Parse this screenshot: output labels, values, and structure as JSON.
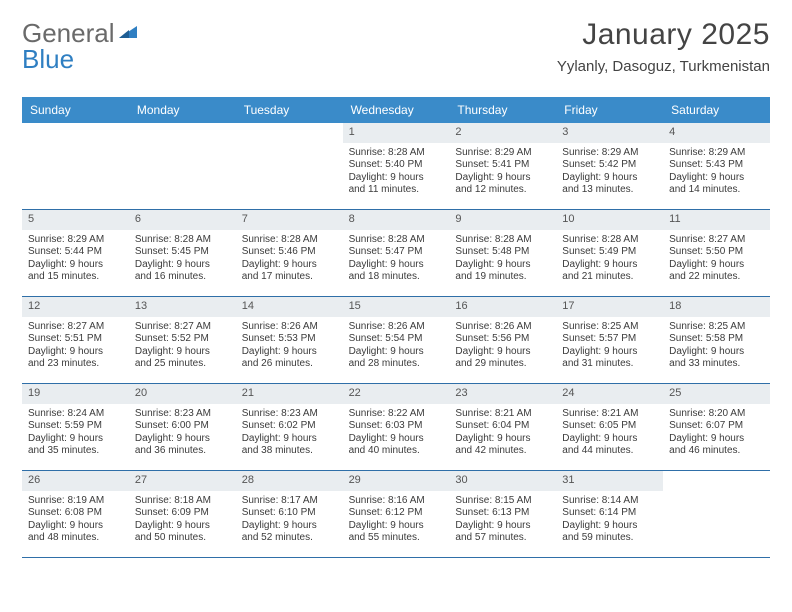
{
  "brand": {
    "part1": "General",
    "part2": "Blue"
  },
  "colors": {
    "header_bg": "#3a8bc9",
    "header_text": "#ffffff",
    "rule": "#2f6fa8",
    "daynum_bg": "#e9edf0",
    "text": "#3b3b3b",
    "brand_gray": "#6a6a6a",
    "brand_blue": "#2f7fc2",
    "page_bg": "#ffffff"
  },
  "title": "January 2025",
  "location": "Yylanly, Dasoguz, Turkmenistan",
  "dows": [
    "Sunday",
    "Monday",
    "Tuesday",
    "Wednesday",
    "Thursday",
    "Friday",
    "Saturday"
  ],
  "weeks": [
    [
      {
        "day": "",
        "sunrise": "",
        "sunset": "",
        "dayl1": "",
        "dayl2": ""
      },
      {
        "day": "",
        "sunrise": "",
        "sunset": "",
        "dayl1": "",
        "dayl2": ""
      },
      {
        "day": "",
        "sunrise": "",
        "sunset": "",
        "dayl1": "",
        "dayl2": ""
      },
      {
        "day": "1",
        "sunrise": "Sunrise: 8:28 AM",
        "sunset": "Sunset: 5:40 PM",
        "dayl1": "Daylight: 9 hours",
        "dayl2": "and 11 minutes."
      },
      {
        "day": "2",
        "sunrise": "Sunrise: 8:29 AM",
        "sunset": "Sunset: 5:41 PM",
        "dayl1": "Daylight: 9 hours",
        "dayl2": "and 12 minutes."
      },
      {
        "day": "3",
        "sunrise": "Sunrise: 8:29 AM",
        "sunset": "Sunset: 5:42 PM",
        "dayl1": "Daylight: 9 hours",
        "dayl2": "and 13 minutes."
      },
      {
        "day": "4",
        "sunrise": "Sunrise: 8:29 AM",
        "sunset": "Sunset: 5:43 PM",
        "dayl1": "Daylight: 9 hours",
        "dayl2": "and 14 minutes."
      }
    ],
    [
      {
        "day": "5",
        "sunrise": "Sunrise: 8:29 AM",
        "sunset": "Sunset: 5:44 PM",
        "dayl1": "Daylight: 9 hours",
        "dayl2": "and 15 minutes."
      },
      {
        "day": "6",
        "sunrise": "Sunrise: 8:28 AM",
        "sunset": "Sunset: 5:45 PM",
        "dayl1": "Daylight: 9 hours",
        "dayl2": "and 16 minutes."
      },
      {
        "day": "7",
        "sunrise": "Sunrise: 8:28 AM",
        "sunset": "Sunset: 5:46 PM",
        "dayl1": "Daylight: 9 hours",
        "dayl2": "and 17 minutes."
      },
      {
        "day": "8",
        "sunrise": "Sunrise: 8:28 AM",
        "sunset": "Sunset: 5:47 PM",
        "dayl1": "Daylight: 9 hours",
        "dayl2": "and 18 minutes."
      },
      {
        "day": "9",
        "sunrise": "Sunrise: 8:28 AM",
        "sunset": "Sunset: 5:48 PM",
        "dayl1": "Daylight: 9 hours",
        "dayl2": "and 19 minutes."
      },
      {
        "day": "10",
        "sunrise": "Sunrise: 8:28 AM",
        "sunset": "Sunset: 5:49 PM",
        "dayl1": "Daylight: 9 hours",
        "dayl2": "and 21 minutes."
      },
      {
        "day": "11",
        "sunrise": "Sunrise: 8:27 AM",
        "sunset": "Sunset: 5:50 PM",
        "dayl1": "Daylight: 9 hours",
        "dayl2": "and 22 minutes."
      }
    ],
    [
      {
        "day": "12",
        "sunrise": "Sunrise: 8:27 AM",
        "sunset": "Sunset: 5:51 PM",
        "dayl1": "Daylight: 9 hours",
        "dayl2": "and 23 minutes."
      },
      {
        "day": "13",
        "sunrise": "Sunrise: 8:27 AM",
        "sunset": "Sunset: 5:52 PM",
        "dayl1": "Daylight: 9 hours",
        "dayl2": "and 25 minutes."
      },
      {
        "day": "14",
        "sunrise": "Sunrise: 8:26 AM",
        "sunset": "Sunset: 5:53 PM",
        "dayl1": "Daylight: 9 hours",
        "dayl2": "and 26 minutes."
      },
      {
        "day": "15",
        "sunrise": "Sunrise: 8:26 AM",
        "sunset": "Sunset: 5:54 PM",
        "dayl1": "Daylight: 9 hours",
        "dayl2": "and 28 minutes."
      },
      {
        "day": "16",
        "sunrise": "Sunrise: 8:26 AM",
        "sunset": "Sunset: 5:56 PM",
        "dayl1": "Daylight: 9 hours",
        "dayl2": "and 29 minutes."
      },
      {
        "day": "17",
        "sunrise": "Sunrise: 8:25 AM",
        "sunset": "Sunset: 5:57 PM",
        "dayl1": "Daylight: 9 hours",
        "dayl2": "and 31 minutes."
      },
      {
        "day": "18",
        "sunrise": "Sunrise: 8:25 AM",
        "sunset": "Sunset: 5:58 PM",
        "dayl1": "Daylight: 9 hours",
        "dayl2": "and 33 minutes."
      }
    ],
    [
      {
        "day": "19",
        "sunrise": "Sunrise: 8:24 AM",
        "sunset": "Sunset: 5:59 PM",
        "dayl1": "Daylight: 9 hours",
        "dayl2": "and 35 minutes."
      },
      {
        "day": "20",
        "sunrise": "Sunrise: 8:23 AM",
        "sunset": "Sunset: 6:00 PM",
        "dayl1": "Daylight: 9 hours",
        "dayl2": "and 36 minutes."
      },
      {
        "day": "21",
        "sunrise": "Sunrise: 8:23 AM",
        "sunset": "Sunset: 6:02 PM",
        "dayl1": "Daylight: 9 hours",
        "dayl2": "and 38 minutes."
      },
      {
        "day": "22",
        "sunrise": "Sunrise: 8:22 AM",
        "sunset": "Sunset: 6:03 PM",
        "dayl1": "Daylight: 9 hours",
        "dayl2": "and 40 minutes."
      },
      {
        "day": "23",
        "sunrise": "Sunrise: 8:21 AM",
        "sunset": "Sunset: 6:04 PM",
        "dayl1": "Daylight: 9 hours",
        "dayl2": "and 42 minutes."
      },
      {
        "day": "24",
        "sunrise": "Sunrise: 8:21 AM",
        "sunset": "Sunset: 6:05 PM",
        "dayl1": "Daylight: 9 hours",
        "dayl2": "and 44 minutes."
      },
      {
        "day": "25",
        "sunrise": "Sunrise: 8:20 AM",
        "sunset": "Sunset: 6:07 PM",
        "dayl1": "Daylight: 9 hours",
        "dayl2": "and 46 minutes."
      }
    ],
    [
      {
        "day": "26",
        "sunrise": "Sunrise: 8:19 AM",
        "sunset": "Sunset: 6:08 PM",
        "dayl1": "Daylight: 9 hours",
        "dayl2": "and 48 minutes."
      },
      {
        "day": "27",
        "sunrise": "Sunrise: 8:18 AM",
        "sunset": "Sunset: 6:09 PM",
        "dayl1": "Daylight: 9 hours",
        "dayl2": "and 50 minutes."
      },
      {
        "day": "28",
        "sunrise": "Sunrise: 8:17 AM",
        "sunset": "Sunset: 6:10 PM",
        "dayl1": "Daylight: 9 hours",
        "dayl2": "and 52 minutes."
      },
      {
        "day": "29",
        "sunrise": "Sunrise: 8:16 AM",
        "sunset": "Sunset: 6:12 PM",
        "dayl1": "Daylight: 9 hours",
        "dayl2": "and 55 minutes."
      },
      {
        "day": "30",
        "sunrise": "Sunrise: 8:15 AM",
        "sunset": "Sunset: 6:13 PM",
        "dayl1": "Daylight: 9 hours",
        "dayl2": "and 57 minutes."
      },
      {
        "day": "31",
        "sunrise": "Sunrise: 8:14 AM",
        "sunset": "Sunset: 6:14 PM",
        "dayl1": "Daylight: 9 hours",
        "dayl2": "and 59 minutes."
      },
      {
        "day": "",
        "sunrise": "",
        "sunset": "",
        "dayl1": "",
        "dayl2": ""
      }
    ]
  ]
}
